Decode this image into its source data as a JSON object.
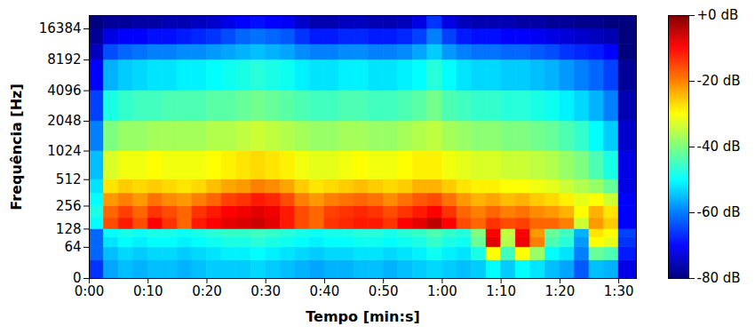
{
  "chart_data": {
    "type": "heatmap",
    "x_label": "Tempo [min:s]",
    "y_label": "Frequência [Hz]",
    "xlim": [
      0,
      93
    ],
    "xticks": [
      {
        "value": 0,
        "label": "0:00"
      },
      {
        "value": 10,
        "label": "0:10"
      },
      {
        "value": 20,
        "label": "0:20"
      },
      {
        "value": 30,
        "label": "0:30"
      },
      {
        "value": 40,
        "label": "0:40"
      },
      {
        "value": 50,
        "label": "0:50"
      },
      {
        "value": 60,
        "label": "1:00"
      },
      {
        "value": 70,
        "label": "1:10"
      },
      {
        "value": 80,
        "label": "1:20"
      },
      {
        "value": 90,
        "label": "1:30"
      }
    ],
    "ylim": [
      0,
      22050
    ],
    "yticks": [
      0,
      64,
      128,
      256,
      512,
      1024,
      2048,
      4096,
      8192,
      16384
    ],
    "log": "y",
    "grid": false,
    "cells": {
      "time_edges": [
        0,
        2.5,
        5,
        7.5,
        10,
        12.5,
        15,
        17.5,
        20,
        22.5,
        25,
        27.5,
        30,
        32.5,
        35,
        37.5,
        40,
        42.5,
        45,
        47.5,
        50,
        52.5,
        55,
        57.5,
        60,
        62.5,
        65,
        67.5,
        70,
        72.5,
        75,
        77.5,
        80,
        82.5,
        85,
        87.5,
        90,
        93
      ],
      "freq_edges": [
        0,
        32,
        64,
        96,
        128,
        181,
        256,
        362,
        512,
        1024,
        2048,
        4096,
        8192,
        11585,
        16384,
        22050
      ],
      "db": [
        [
          -66,
          -57,
          -55,
          -56,
          -55,
          -55,
          -56,
          -55,
          -54,
          -54,
          -54,
          -53,
          -54,
          -55,
          -56,
          -57,
          -56,
          -56,
          -55,
          -55,
          -56,
          -55,
          -54,
          -53,
          -54,
          -55,
          -54,
          -50,
          -54,
          -50,
          -52,
          -55,
          -57,
          -63,
          -55,
          -56,
          -72
        ],
        [
          -62,
          -55,
          -53,
          -54,
          -53,
          -53,
          -54,
          -53,
          -52,
          -51,
          -51,
          -50,
          -51,
          -52,
          -53,
          -54,
          -53,
          -53,
          -52,
          -52,
          -53,
          -52,
          -51,
          -49,
          -51,
          -52,
          -48,
          -30,
          -45,
          -30,
          -38,
          -50,
          -52,
          -60,
          -42,
          -44,
          -68
        ],
        [
          -62,
          -52,
          -50,
          -51,
          -50,
          -50,
          -51,
          -50,
          -49,
          -48,
          -48,
          -47,
          -48,
          -49,
          -50,
          -51,
          -50,
          -50,
          -49,
          -49,
          -50,
          -49,
          -48,
          -46,
          -48,
          -49,
          -42,
          -8,
          -36,
          -9,
          -20,
          -44,
          -47,
          -58,
          -30,
          -32,
          -66
        ],
        [
          -62,
          -50,
          -48,
          -49,
          -48,
          -48,
          -49,
          -48,
          -47,
          -46,
          -46,
          -45,
          -46,
          -47,
          -48,
          -49,
          -48,
          -48,
          -47,
          -47,
          -48,
          -47,
          -46,
          -44,
          -46,
          -47,
          -40,
          -10,
          -35,
          -10,
          -22,
          -42,
          -45,
          -56,
          -28,
          -30,
          -65
        ],
        [
          -50,
          -16,
          -12,
          -16,
          -10,
          -14,
          -18,
          -12,
          -10,
          -8,
          -7,
          -6,
          -8,
          -12,
          -16,
          -18,
          -14,
          -13,
          -12,
          -12,
          -14,
          -10,
          -8,
          -5,
          -10,
          -16,
          -18,
          -14,
          -16,
          -15,
          -18,
          -18,
          -20,
          -34,
          -22,
          -26,
          -70
        ],
        [
          -48,
          -18,
          -15,
          -18,
          -14,
          -16,
          -18,
          -14,
          -12,
          -10,
          -9,
          -8,
          -9,
          -12,
          -16,
          -18,
          -15,
          -14,
          -13,
          -14,
          -16,
          -14,
          -12,
          -10,
          -14,
          -18,
          -20,
          -18,
          -20,
          -19,
          -21,
          -22,
          -24,
          -30,
          -24,
          -28,
          -70
        ],
        [
          -50,
          -22,
          -20,
          -22,
          -19,
          -21,
          -22,
          -20,
          -18,
          -15,
          -14,
          -12,
          -13,
          -16,
          -20,
          -22,
          -20,
          -19,
          -18,
          -19,
          -21,
          -19,
          -17,
          -16,
          -19,
          -22,
          -24,
          -23,
          -25,
          -24,
          -26,
          -27,
          -29,
          -32,
          -30,
          -34,
          -70
        ],
        [
          -52,
          -28,
          -26,
          -27,
          -26,
          -27,
          -28,
          -27,
          -25,
          -23,
          -22,
          -20,
          -21,
          -23,
          -26,
          -28,
          -27,
          -26,
          -25,
          -26,
          -27,
          -26,
          -24,
          -24,
          -26,
          -28,
          -29,
          -29,
          -30,
          -30,
          -31,
          -32,
          -34,
          -36,
          -38,
          -42,
          -72
        ],
        [
          -55,
          -33,
          -31,
          -31,
          -30,
          -31,
          -31,
          -31,
          -30,
          -29,
          -28,
          -27,
          -28,
          -29,
          -31,
          -32,
          -32,
          -31,
          -30,
          -31,
          -31,
          -30,
          -29,
          -29,
          -31,
          -32,
          -33,
          -33,
          -34,
          -34,
          -35,
          -36,
          -38,
          -40,
          -44,
          -48,
          -72
        ],
        [
          -60,
          -40,
          -38,
          -38,
          -37,
          -37,
          -37,
          -37,
          -36,
          -36,
          -35,
          -34,
          -35,
          -36,
          -37,
          -38,
          -38,
          -37,
          -37,
          -38,
          -38,
          -37,
          -36,
          -35,
          -37,
          -38,
          -39,
          -39,
          -40,
          -40,
          -41,
          -42,
          -44,
          -46,
          -50,
          -54,
          -74
        ],
        [
          -65,
          -48,
          -46,
          -45,
          -45,
          -44,
          -44,
          -44,
          -43,
          -43,
          -42,
          -41,
          -42,
          -43,
          -44,
          -45,
          -45,
          -44,
          -44,
          -45,
          -45,
          -44,
          -43,
          -41,
          -44,
          -45,
          -46,
          -46,
          -47,
          -47,
          -48,
          -49,
          -51,
          -53,
          -56,
          -60,
          -76
        ],
        [
          -70,
          -56,
          -54,
          -53,
          -52,
          -52,
          -51,
          -51,
          -50,
          -49,
          -48,
          -47,
          -48,
          -49,
          -51,
          -52,
          -52,
          -51,
          -51,
          -52,
          -52,
          -51,
          -50,
          -47,
          -50,
          -52,
          -53,
          -53,
          -54,
          -54,
          -55,
          -56,
          -58,
          -60,
          -62,
          -65,
          -78
        ],
        [
          -75,
          -64,
          -62,
          -61,
          -60,
          -60,
          -59,
          -59,
          -58,
          -57,
          -56,
          -55,
          -56,
          -57,
          -59,
          -60,
          -60,
          -59,
          -59,
          -60,
          -60,
          -59,
          -57,
          -54,
          -58,
          -60,
          -61,
          -61,
          -62,
          -62,
          -63,
          -64,
          -66,
          -67,
          -68,
          -70,
          -80
        ],
        [
          -78,
          -72,
          -70,
          -70,
          -69,
          -69,
          -68,
          -67,
          -66,
          -64,
          -62,
          -61,
          -62,
          -63,
          -66,
          -68,
          -68,
          -67,
          -67,
          -68,
          -68,
          -67,
          -65,
          -60,
          -65,
          -68,
          -69,
          -69,
          -70,
          -70,
          -71,
          -72,
          -73,
          -74,
          -75,
          -76,
          -80
        ],
        [
          -80,
          -78,
          -78,
          -77,
          -77,
          -76,
          -76,
          -75,
          -74,
          -72,
          -70,
          -69,
          -70,
          -71,
          -74,
          -76,
          -76,
          -75,
          -75,
          -76,
          -76,
          -75,
          -72,
          -66,
          -72,
          -75,
          -76,
          -76,
          -76,
          -77,
          -77,
          -78,
          -78,
          -79,
          -79,
          -80,
          -80
        ]
      ]
    },
    "colorbar": {
      "range": [
        -80,
        0
      ],
      "ticks": [
        {
          "value": 0,
          "label": "+0 dB"
        },
        {
          "value": -20,
          "label": "-20 dB"
        },
        {
          "value": -40,
          "label": "-40 dB"
        },
        {
          "value": -60,
          "label": "-60 dB"
        },
        {
          "value": -80,
          "label": "-80 dB"
        }
      ]
    }
  }
}
